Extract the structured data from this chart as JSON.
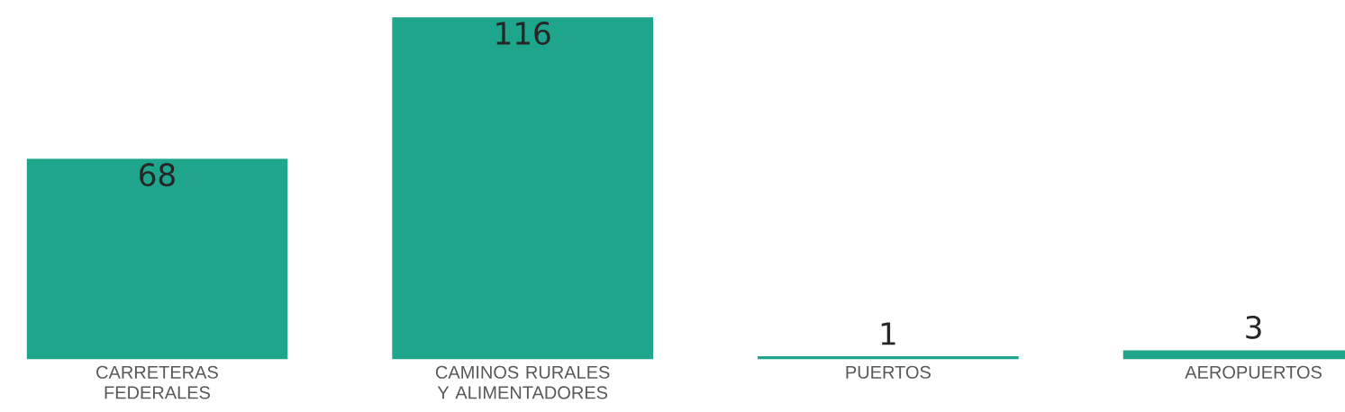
{
  "chart_data": {
    "type": "bar",
    "categories": [
      "CARRETERAS FEDERALES",
      "CAMINOS RURALES Y ALIMENTADORES",
      "PUERTOS",
      "AEROPUERTOS"
    ],
    "values": [
      68,
      116,
      1,
      3
    ],
    "color": "#1ea58c",
    "data_labels": true
  }
}
